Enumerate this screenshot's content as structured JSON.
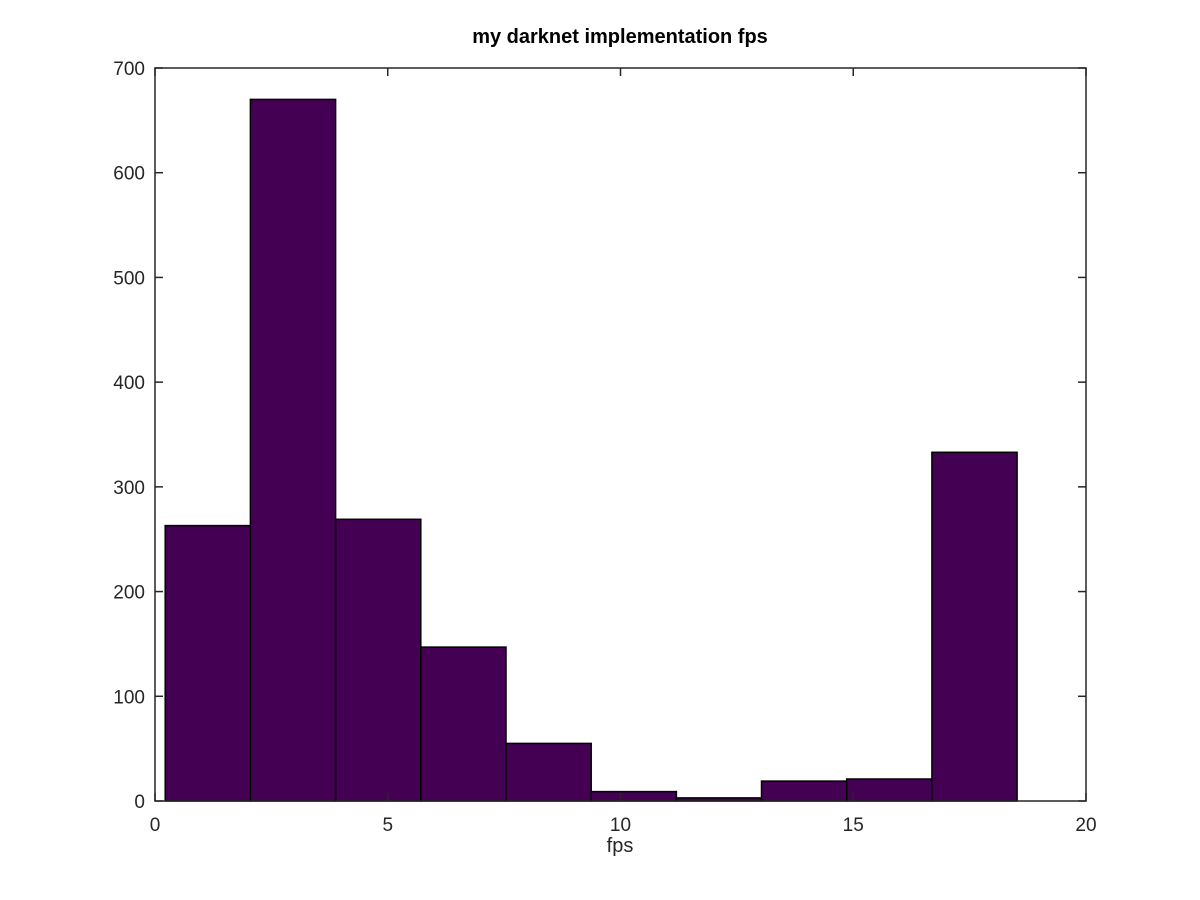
{
  "chart_data": {
    "type": "bar",
    "subtype": "histogram",
    "title": "my darknet implementation fps",
    "xlabel": "fps",
    "ylabel": "",
    "xlim": [
      0,
      20
    ],
    "ylim": [
      0,
      700
    ],
    "xticks": [
      0,
      5,
      10,
      15,
      20
    ],
    "yticks": [
      0,
      100,
      200,
      300,
      400,
      500,
      600,
      700
    ],
    "bins": [
      {
        "x0": 0.22,
        "x1": 2.05,
        "count": 263
      },
      {
        "x0": 2.05,
        "x1": 3.88,
        "count": 670
      },
      {
        "x0": 3.88,
        "x1": 5.71,
        "count": 269
      },
      {
        "x0": 5.71,
        "x1": 7.54,
        "count": 147
      },
      {
        "x0": 7.54,
        "x1": 9.37,
        "count": 55
      },
      {
        "x0": 9.37,
        "x1": 11.2,
        "count": 9
      },
      {
        "x0": 11.2,
        "x1": 13.03,
        "count": 3
      },
      {
        "x0": 13.03,
        "x1": 14.86,
        "count": 19
      },
      {
        "x0": 14.86,
        "x1": 16.69,
        "count": 21
      },
      {
        "x0": 16.69,
        "x1": 18.52,
        "count": 333
      }
    ],
    "bar_color": "#440154",
    "edge_color": "#000000",
    "grid": false,
    "box": true
  }
}
